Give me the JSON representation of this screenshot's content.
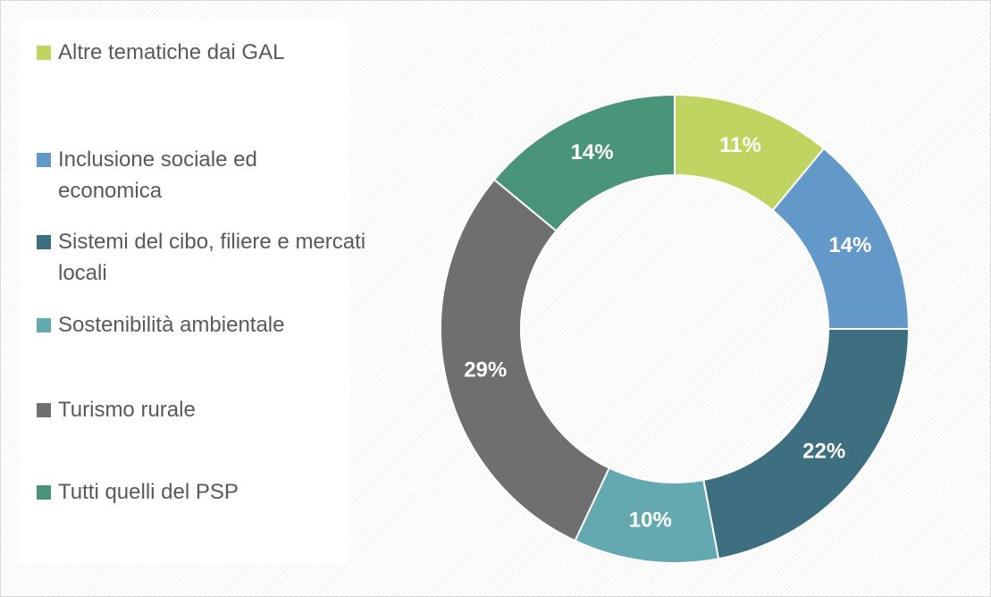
{
  "chart_data": {
    "type": "donut",
    "categories": [
      "Altre tematiche dai GAL",
      "Inclusione sociale ed economica",
      "Sistemi del cibo, filiere e mercati locali",
      "Sostenibilità ambientale",
      "Turismo rurale",
      "Tutti quelli del PSP"
    ],
    "values": [
      11,
      14,
      22,
      10,
      29,
      14
    ],
    "value_labels": [
      "11%",
      "14%",
      "22%",
      "10%",
      "29%",
      "14%"
    ],
    "colors": [
      "#bfd461",
      "#6399c9",
      "#3e6f80",
      "#64a9b0",
      "#6f6f6f",
      "#4a9479"
    ],
    "legend": "left"
  }
}
